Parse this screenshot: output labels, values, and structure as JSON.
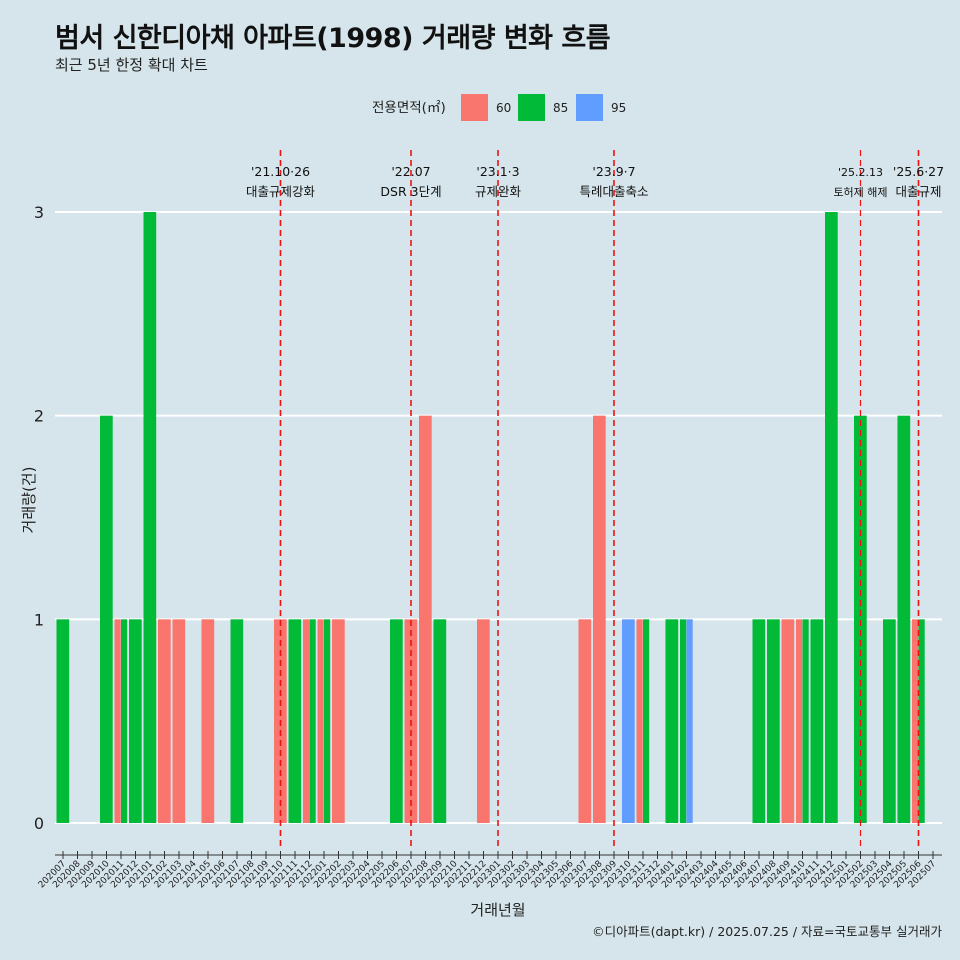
{
  "header": {
    "title": "범서 신한디아채 아파트(1998) 거래량 변화 흐름",
    "subtitle": "최근 5년 한정 확대 차트"
  },
  "caption": "©디아파트(dapt.kr) / 2025.07.25 / 자료=국토교통부 실거래가",
  "chart_data": {
    "type": "bar",
    "xlabel": "거래년월",
    "ylabel": "거래량(건)",
    "ylim": [
      0,
      3
    ],
    "yticks": [
      0,
      1,
      2,
      3
    ],
    "grid": "horizontal",
    "legend": {
      "title": "전용면적(㎡)",
      "placement": "top",
      "entries": [
        {
          "name": "60",
          "color": "#f8766d"
        },
        {
          "name": "85",
          "color": "#00ba38"
        },
        {
          "name": "95",
          "color": "#619cff"
        }
      ]
    },
    "categories": [
      "202007",
      "202008",
      "202009",
      "202010",
      "202011",
      "202012",
      "202101",
      "202102",
      "202103",
      "202104",
      "202105",
      "202106",
      "202107",
      "202108",
      "202109",
      "202110",
      "202111",
      "202112",
      "202201",
      "202202",
      "202203",
      "202204",
      "202205",
      "202206",
      "202207",
      "202208",
      "202209",
      "202210",
      "202211",
      "202212",
      "202301",
      "202302",
      "202303",
      "202304",
      "202305",
      "202306",
      "202307",
      "202308",
      "202309",
      "202310",
      "202311",
      "202312",
      "202401",
      "202402",
      "202403",
      "202404",
      "202405",
      "202406",
      "202407",
      "202408",
      "202409",
      "202410",
      "202411",
      "202412",
      "202501",
      "202502",
      "202503",
      "202504",
      "202505",
      "202506",
      "202507"
    ],
    "series": [
      {
        "name": "60",
        "color": "#f8766d",
        "values": [
          0,
          0,
          0,
          0,
          1,
          0,
          0,
          1,
          1,
          0,
          1,
          0,
          0,
          0,
          0,
          1,
          0,
          1,
          1,
          1,
          0,
          0,
          0,
          0,
          1,
          2,
          0,
          0,
          0,
          1,
          0,
          0,
          0,
          0,
          0,
          0,
          1,
          2,
          0,
          0,
          1,
          0,
          0,
          0,
          0,
          0,
          0,
          0,
          0,
          0,
          1,
          1,
          0,
          0,
          0,
          0,
          0,
          0,
          0,
          1,
          0
        ]
      },
      {
        "name": "85",
        "color": "#00ba38",
        "values": [
          1,
          0,
          0,
          2,
          1,
          1,
          3,
          0,
          0,
          0,
          0,
          0,
          1,
          0,
          0,
          0,
          1,
          1,
          1,
          0,
          0,
          0,
          0,
          1,
          0,
          0,
          1,
          0,
          0,
          0,
          0,
          0,
          0,
          0,
          0,
          0,
          0,
          0,
          0,
          0,
          1,
          0,
          1,
          1,
          0,
          0,
          0,
          0,
          1,
          1,
          0,
          1,
          1,
          3,
          0,
          2,
          0,
          1,
          2,
          1,
          0
        ]
      },
      {
        "name": "95",
        "color": "#619cff",
        "values": [
          0,
          0,
          0,
          0,
          0,
          0,
          0,
          0,
          0,
          0,
          0,
          0,
          0,
          0,
          0,
          0,
          0,
          0,
          0,
          0,
          0,
          0,
          0,
          0,
          0,
          0,
          0,
          0,
          0,
          0,
          0,
          0,
          0,
          0,
          0,
          0,
          0,
          0,
          0,
          1,
          0,
          0,
          0,
          1,
          0,
          0,
          0,
          0,
          0,
          0,
          0,
          0,
          0,
          0,
          0,
          0,
          0,
          0,
          0,
          0,
          0
        ]
      }
    ],
    "annotations": [
      {
        "x": "202110",
        "date": "'21.10·26",
        "label": "대출규제강화"
      },
      {
        "x": "202207",
        "date": "'22.07",
        "label": "DSR 3단계"
      },
      {
        "x": "202301",
        "date": "'23.1·3",
        "label": "규제완화"
      },
      {
        "x": "202309",
        "date": "'23.9·7",
        "label": "특례대출축소"
      },
      {
        "x": "202502",
        "date": "'25.2.13",
        "label": "토허제 해제"
      },
      {
        "x": "202506",
        "date": "'25.6·27",
        "label": "대출규제"
      }
    ]
  }
}
